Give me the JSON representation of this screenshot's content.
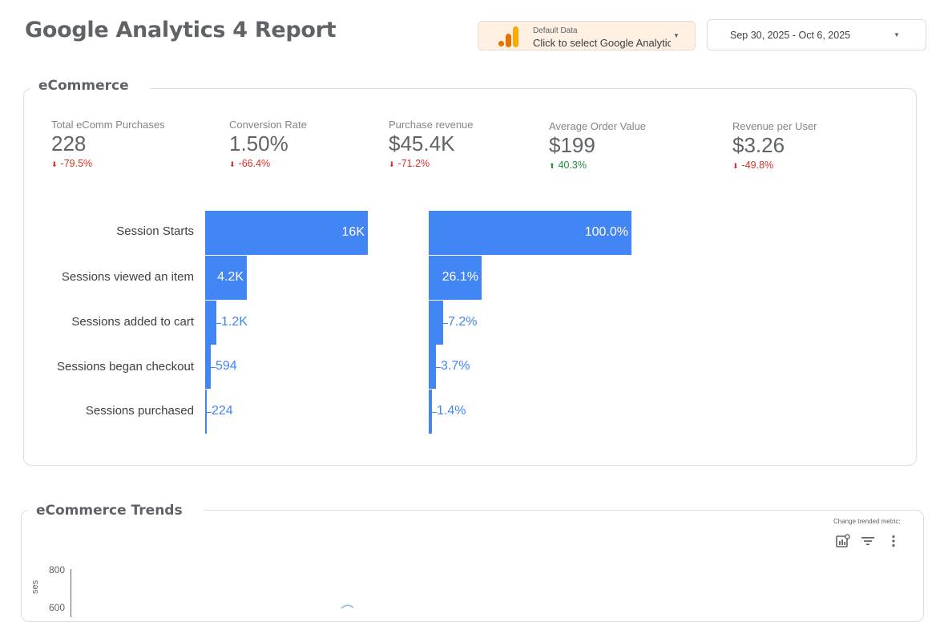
{
  "header": {
    "title": "Google Analytics 4 Report",
    "data_source": {
      "label": "Default Data",
      "value": "Click to select Google Analytics",
      "icon": "google-analytics-logo"
    },
    "date_range": "Sep 30, 2025 - Oct 6, 2025"
  },
  "ecommerce": {
    "title": "eCommerce",
    "kpis": [
      {
        "label": "Total eComm Purchases",
        "value": "228",
        "delta": "-79.5%",
        "direction": "down"
      },
      {
        "label": "Conversion Rate",
        "value": "1.50%",
        "delta": "-66.4%",
        "direction": "down"
      },
      {
        "label": "Purchase revenue",
        "value": "$45.4K",
        "delta": "-71.2%",
        "direction": "down"
      },
      {
        "label": "Average Order Value",
        "value": "$199",
        "delta": "40.3%",
        "direction": "up"
      },
      {
        "label": "Revenue per User",
        "value": "$3.26",
        "delta": "-49.8%",
        "direction": "down"
      }
    ],
    "funnel": {
      "steps": [
        "Session Starts",
        "Sessions viewed an item",
        "Sessions added to cart",
        "Sessions began checkout",
        "Sessions purchased"
      ],
      "counts": [
        "16K",
        "4.2K",
        "1.2K",
        "594",
        "224"
      ],
      "count_fraction": [
        1.0,
        0.255,
        0.07,
        0.035,
        0.012
      ],
      "percents": [
        "100.0%",
        "26.1%",
        "7.2%",
        "3.7%",
        "1.4%"
      ],
      "percent_fraction": [
        1.0,
        0.261,
        0.072,
        0.037,
        0.014
      ]
    }
  },
  "trends": {
    "title": "eCommerce Trends",
    "change_metric_label": "Change trended metric:",
    "y_ticks": [
      "800",
      "600"
    ],
    "y_axis_label": "ses",
    "toolbar": [
      "chart-settings-icon",
      "filter-icon",
      "more-vert-icon"
    ]
  },
  "colors": {
    "bar": "#4285f4",
    "negative": "#d93025",
    "positive": "#1e8e3e",
    "data_source_bg": "#fef0e2"
  }
}
